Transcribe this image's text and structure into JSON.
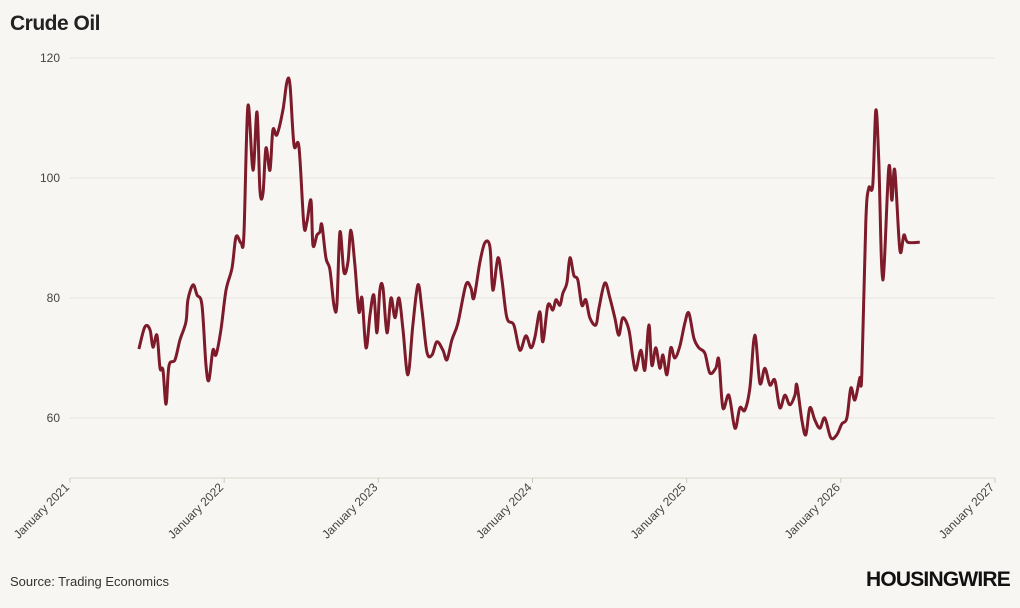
{
  "chart_data": {
    "type": "line",
    "title": "Crude Oil",
    "source": "Source: Trading Economics",
    "brand": "HOUSINGWIRE",
    "xlim": [
      2021,
      2027
    ],
    "xticks": [
      {
        "value": 2021,
        "label": "January 2021"
      },
      {
        "value": 2022,
        "label": "January 2022"
      },
      {
        "value": 2023,
        "label": "January 2023"
      },
      {
        "value": 2024,
        "label": "January 2024"
      },
      {
        "value": 2025,
        "label": "January 2025"
      },
      {
        "value": 2026,
        "label": "January 2026"
      },
      {
        "value": 2027,
        "label": "January 2027"
      }
    ],
    "ylim": [
      50,
      120
    ],
    "yticks": [
      60,
      80,
      100,
      120
    ],
    "grid": true,
    "x": [
      2021.447,
      2021.486,
      2021.519,
      2021.538,
      2021.564,
      2021.584,
      2021.603,
      2021.623,
      2021.642,
      2021.681,
      2021.713,
      2021.752,
      2021.765,
      2021.798,
      2021.824,
      2021.856,
      2021.882,
      2021.901,
      2021.927,
      2021.947,
      2021.979,
      2022.012,
      2022.051,
      2022.077,
      2022.109,
      2022.128,
      2022.154,
      2022.187,
      2022.213,
      2022.232,
      2022.252,
      2022.271,
      2022.297,
      2022.316,
      2022.342,
      2022.381,
      2022.407,
      2022.427,
      2022.453,
      2022.485,
      2022.517,
      2022.537,
      2022.563,
      2022.576,
      2022.602,
      2022.621,
      2022.634,
      2022.66,
      2022.686,
      2022.712,
      2022.731,
      2022.751,
      2022.777,
      2022.803,
      2022.822,
      2022.848,
      2022.874,
      2022.894,
      2022.92,
      2022.946,
      2022.971,
      2022.991,
      2023.01,
      2023.03,
      2023.056,
      2023.082,
      2023.108,
      2023.134,
      2023.16,
      2023.192,
      2023.224,
      2023.257,
      2023.283,
      2023.315,
      2023.348,
      2023.38,
      2023.419,
      2023.445,
      2023.477,
      2023.516,
      2023.568,
      2023.6,
      2023.62,
      2023.659,
      2023.691,
      2023.724,
      2023.743,
      2023.776,
      2023.802,
      2023.834,
      2023.879,
      2023.918,
      2023.957,
      2023.99,
      2024.016,
      2024.048,
      2024.067,
      2024.1,
      2024.132,
      2024.152,
      2024.178,
      2024.197,
      2024.223,
      2024.243,
      2024.268,
      2024.294,
      2024.32,
      2024.346,
      2024.372,
      2024.411,
      2024.431,
      2024.469,
      2024.502,
      2024.534,
      2024.56,
      2024.586,
      2024.625,
      2024.651,
      2024.671,
      2024.703,
      2024.729,
      2024.755,
      2024.774,
      2024.8,
      2024.826,
      2024.846,
      2024.872,
      2024.897,
      2024.923,
      2024.956,
      2024.988,
      2025.014,
      2025.047,
      2025.079,
      2025.118,
      2025.15,
      2025.189,
      2025.209,
      2025.235,
      2025.274,
      2025.313,
      2025.345,
      2025.377,
      2025.41,
      2025.442,
      2025.475,
      2025.507,
      2025.54,
      2025.572,
      2025.604,
      2025.637,
      2025.669,
      2025.702,
      2025.715,
      2025.747,
      2025.773,
      2025.799,
      2025.831,
      2025.864,
      2025.896,
      2025.935,
      2025.974,
      2026.006,
      2026.039,
      2026.065,
      2026.091,
      2026.123,
      2026.136,
      2026.162,
      2026.181,
      2026.207,
      2026.227,
      2026.246,
      2026.272,
      2026.311,
      2026.331,
      2026.35,
      2026.383,
      2026.409,
      2026.434,
      2026.512
    ],
    "series": [
      {
        "name": "Crude Oil",
        "color": "#7d1b2a",
        "values": [
          71.5,
          75.2,
          74.7,
          71.8,
          73.8,
          68.3,
          68,
          62.3,
          68.7,
          69.7,
          73,
          76,
          79.7,
          82.2,
          80.5,
          78.8,
          68.8,
          66.3,
          71.3,
          70.5,
          74.7,
          81.3,
          85,
          90.2,
          89.2,
          90.5,
          112,
          101.3,
          111,
          98,
          97.5,
          105,
          101.3,
          108,
          107.2,
          111.3,
          116,
          115.5,
          105.5,
          105.2,
          92.2,
          92.7,
          96.3,
          88.8,
          90.5,
          91,
          92.2,
          86.7,
          84.7,
          78.8,
          78.8,
          91,
          84.3,
          86,
          91.3,
          85.5,
          77.7,
          80,
          71.7,
          77.2,
          80.5,
          74.2,
          81.3,
          81.7,
          74.2,
          80,
          76.7,
          80,
          74.7,
          67.2,
          75.5,
          82.2,
          78,
          71,
          70.5,
          72.7,
          71.3,
          69.7,
          73,
          75.8,
          82.2,
          81.7,
          80,
          86,
          89.2,
          88.5,
          81.3,
          86.7,
          83,
          76.7,
          75.5,
          71.3,
          73.7,
          71.7,
          73.5,
          77.7,
          72.7,
          78.8,
          78,
          79.7,
          78.8,
          80.8,
          82.5,
          86.7,
          83.8,
          83,
          78.8,
          79.7,
          76.7,
          75.5,
          78.3,
          82.5,
          80,
          76.7,
          73.8,
          76.7,
          74.7,
          70,
          68,
          71.3,
          68,
          75.5,
          68.8,
          71.7,
          68.3,
          70.5,
          67.2,
          71.7,
          70,
          72,
          75.8,
          77.5,
          73.3,
          71.7,
          70.8,
          67.5,
          68.3,
          69.7,
          61.7,
          63.8,
          58.3,
          61.7,
          61.3,
          65,
          73.8,
          65.8,
          68.3,
          65.5,
          66.3,
          61.7,
          63.8,
          62.2,
          63.8,
          65.5,
          59.7,
          57.2,
          61.7,
          59.7,
          58.3,
          60,
          56.7,
          57.2,
          59,
          60,
          65,
          63,
          66.7,
          67.2,
          92.7,
          98.3,
          98.8,
          111.3,
          103,
          83,
          101.7,
          96.3,
          101.3,
          88,
          90.5,
          89.3,
          89.3
        ]
      }
    ]
  }
}
